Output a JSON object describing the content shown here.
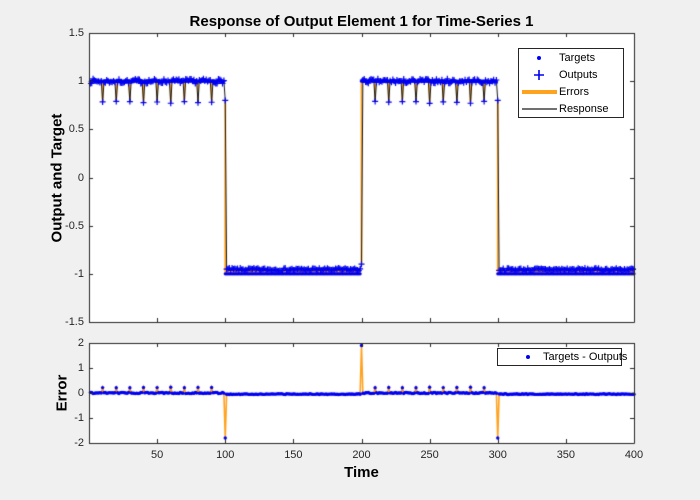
{
  "figure": {
    "title": "Response of Output Element 1 for Time-Series 1",
    "background": "#F0F0F0"
  },
  "colors": {
    "marker_blue": "#0000F0",
    "error_orange": "#FFA21E",
    "response_black": "#1A1A1A",
    "axes": "#262626",
    "plot_bg": "#FFFFFF",
    "tick_text": "#262626"
  },
  "chart_data": [
    {
      "type": "line",
      "title": "Response of Output Element 1 for Time-Series 1",
      "ylabel": "Output and Target",
      "xlabel": "",
      "xlim": [
        0,
        400
      ],
      "ylim": [
        -1.5,
        1.5
      ],
      "xticks": [
        50,
        100,
        150,
        200,
        250,
        300,
        350,
        400
      ],
      "xtick_labels_visible": false,
      "ytick_labels": [
        "1.5",
        "1",
        "0.5",
        "0",
        "-0.5",
        "-1",
        "-1.5"
      ],
      "yticks": [
        1.5,
        1,
        0.5,
        0,
        -0.5,
        -1,
        -1.5
      ],
      "grid": false,
      "legend": {
        "position": "top-right",
        "entries": [
          {
            "label": "Targets",
            "marker": "dot",
            "color": "#0000F0"
          },
          {
            "label": "Outputs",
            "marker": "plus",
            "color": "#0000F0"
          },
          {
            "label": "Errors",
            "marker": "thick-line",
            "color": "#FFA21E"
          },
          {
            "label": "Response",
            "marker": "thin-line",
            "color": "#1A1A1A"
          }
        ]
      },
      "series": [
        {
          "name": "Targets",
          "description": "square wave, +1 on t=1..99 and 200..299, -1 on t=100..199 and 300..400"
        },
        {
          "name": "Outputs",
          "description": "tracks targets with small noise; lag points at transitions t=100,200,300; periodic dips to ~0.78 every 10 steps on the +1 segments"
        },
        {
          "name": "Errors",
          "description": "vertical orange bars from target to output at each t; large at t=100 (-1.8), t=200 (+1.9), t=300 (-1.8)"
        },
        {
          "name": "Response",
          "description": "black line through output values"
        }
      ]
    },
    {
      "type": "line",
      "title": "",
      "ylabel": "Error",
      "xlabel": "Time",
      "xlim": [
        0,
        400
      ],
      "ylim": [
        -2,
        2
      ],
      "xticks": [
        50,
        100,
        150,
        200,
        250,
        300,
        350,
        400
      ],
      "xtick_labels": [
        "50",
        "100",
        "150",
        "200",
        "250",
        "300",
        "350",
        "400"
      ],
      "xtick_labels_visible": true,
      "ytick_labels": [
        "2",
        "1",
        "0",
        "-1",
        "-2"
      ],
      "yticks": [
        2,
        1,
        0,
        -1,
        -2
      ],
      "grid": false,
      "legend": {
        "position": "top-right",
        "entries": [
          {
            "label": "Targets - Outputs",
            "marker": "dot",
            "color": "#0000F0"
          }
        ]
      },
      "series": [
        {
          "name": "Targets - Outputs",
          "description": "error = target - output; near 0 everywhere, +0.22 bumps every 10 steps on +1 segments, spikes -1.8 at t=100, +1.9 at t=200, -1.8 at t=300, about -0.045 on -1 segments"
        }
      ]
    }
  ],
  "signal_spec": {
    "n": 400,
    "target_segments": [
      [
        1,
        99,
        1
      ],
      [
        100,
        199,
        -1
      ],
      [
        200,
        299,
        1
      ],
      [
        300,
        400,
        -1
      ]
    ],
    "transitions": [
      {
        "t": 100,
        "output": 0.8
      },
      {
        "t": 200,
        "output": -0.9
      },
      {
        "t": 300,
        "output": 0.8
      }
    ],
    "dips": {
      "times": [
        10,
        20,
        30,
        40,
        50,
        60,
        70,
        80,
        90,
        210,
        220,
        230,
        240,
        250,
        260,
        270,
        280,
        290
      ],
      "output": 0.78
    },
    "high_level": 1,
    "high_noise": 0.025,
    "low_level": -0.955,
    "low_noise": 0.015
  }
}
